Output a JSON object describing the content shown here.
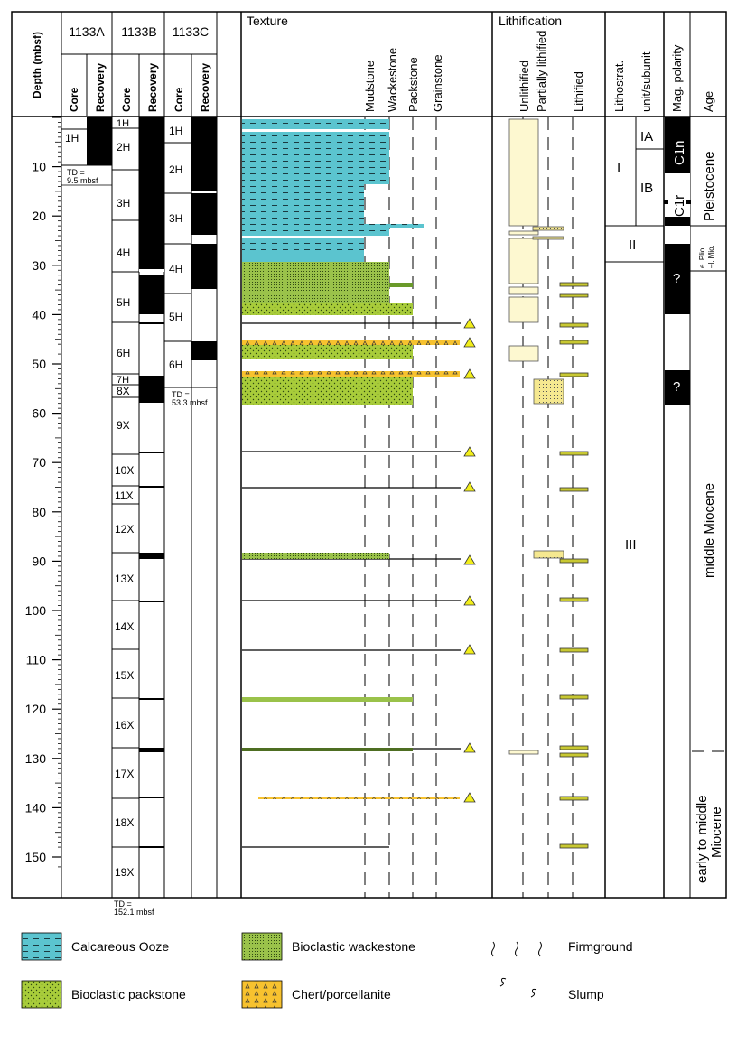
{
  "header": {
    "depth": "Depth (mbsf)",
    "hole_a": "1133A",
    "hole_b": "1133B",
    "hole_c": "1133C",
    "core": "Core",
    "recovery": "Recovery",
    "texture": "Texture",
    "lithification": "Lithification",
    "lithostrat_1": "Lithostrat.",
    "lithostrat_2": "unit/subunit",
    "mag_polarity": "Mag. polarity",
    "age": "Age"
  },
  "texture_classes": [
    "Mudstone",
    "Wackestone",
    "Packstone",
    "Grainstone"
  ],
  "lithification_classes": [
    "Unlithified",
    "Partially lithified",
    "Lithified"
  ],
  "depth_ticks": [
    "10",
    "20",
    "30",
    "40",
    "50",
    "60",
    "70",
    "80",
    "90",
    "100",
    "110",
    "120",
    "130",
    "140",
    "150"
  ],
  "hole_1133a": {
    "cores": [
      "1H"
    ],
    "td_line1": "TD =",
    "td_line2": "9.5 mbsf"
  },
  "hole_1133b": {
    "cores": [
      "1H",
      "2H",
      "3H",
      "4H",
      "5H",
      "6H",
      "7H",
      "8X",
      "9X",
      "10X",
      "11X",
      "12X",
      "13X",
      "14X",
      "15X",
      "16X",
      "17X",
      "18X",
      "19X"
    ],
    "td_line1": "TD =",
    "td_line2": "152.1 mbsf"
  },
  "hole_1133c": {
    "cores": [
      "1H",
      "2H",
      "3H",
      "4H",
      "5H",
      "6H"
    ],
    "td_line1": "TD =",
    "td_line2": "53.3 mbsf"
  },
  "units": {
    "unit_I": "I",
    "sub_IA": "IA",
    "sub_IB": "IB",
    "unit_II": "II",
    "unit_III": "III"
  },
  "polarity": {
    "c1n": "C1n",
    "c1r": "C1r",
    "unknown": "?"
  },
  "ages": {
    "pleistocene": "Pleistocene",
    "plio_1": "e. Plio.",
    "plio_2": "–l. Mio.",
    "middle_miocene": "middle Miocene",
    "early_middle_1": "early to middle",
    "early_middle_2": "Miocene"
  },
  "legend": {
    "calcareous_ooze": "Calcareous Ooze",
    "bioclastic_wackestone": "Bioclastic wackestone",
    "bioclastic_packstone": "Bioclastic packstone",
    "chert": "Chert/porcellanite",
    "firmground": "Firmground",
    "slump": "Slump"
  },
  "colors": {
    "ooze": "#5bc4cf",
    "wackestone": "#9ac24a",
    "packstone": "#a8cc3a",
    "chert": "#f7c22f",
    "unlithified": "#fdf8d0",
    "lithified": "#c8c832",
    "partial": "#f5e890"
  }
}
